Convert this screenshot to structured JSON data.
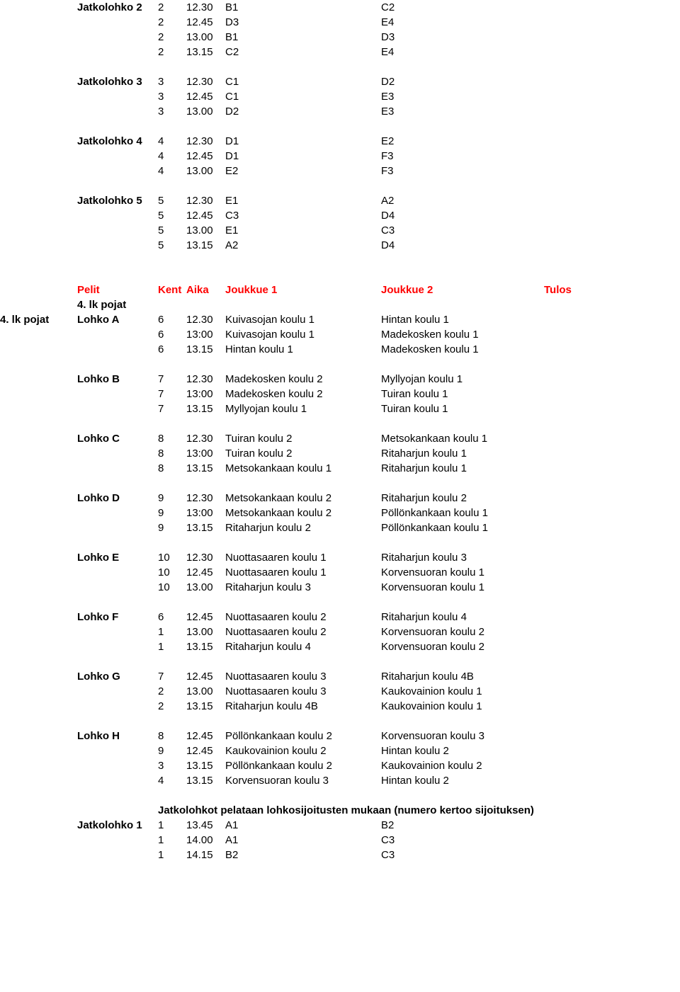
{
  "top_blocks": [
    {
      "label": "Jatkolohko 2",
      "rows": [
        {
          "k": "2",
          "a": "12.30",
          "j1": "B1",
          "j2": "C2"
        },
        {
          "k": "2",
          "a": "12.45",
          "j1": "D3",
          "j2": "E4"
        },
        {
          "k": "2",
          "a": "13.00",
          "j1": "B1",
          "j2": "D3"
        },
        {
          "k": "2",
          "a": "13.15",
          "j1": "C2",
          "j2": "E4"
        }
      ]
    },
    {
      "label": "Jatkolohko 3",
      "rows": [
        {
          "k": "3",
          "a": "12.30",
          "j1": "C1",
          "j2": "D2"
        },
        {
          "k": "3",
          "a": "12.45",
          "j1": "C1",
          "j2": "E3"
        },
        {
          "k": "3",
          "a": "13.00",
          "j1": "D2",
          "j2": "E3"
        }
      ]
    },
    {
      "label": "Jatkolohko 4",
      "rows": [
        {
          "k": "4",
          "a": "12.30",
          "j1": "D1",
          "j2": "E2"
        },
        {
          "k": "4",
          "a": "12.45",
          "j1": "D1",
          "j2": "F3"
        },
        {
          "k": "4",
          "a": "13.00",
          "j1": "E2",
          "j2": "F3"
        }
      ]
    },
    {
      "label": "Jatkolohko 5",
      "rows": [
        {
          "k": "5",
          "a": "12.30",
          "j1": "E1",
          "j2": "A2"
        },
        {
          "k": "5",
          "a": "12.45",
          "j1": "C3",
          "j2": "D4"
        },
        {
          "k": "5",
          "a": "13.00",
          "j1": "E1",
          "j2": "C3"
        },
        {
          "k": "5",
          "a": "13.15",
          "j1": "A2",
          "j2": "D4"
        }
      ]
    }
  ],
  "header": {
    "pelit": "Pelit",
    "kentta": "Kenttä",
    "aika": "Aika",
    "j1": "Joukkue 1",
    "j2": "Joukkue 2",
    "tulos": "Tulos"
  },
  "section_label_outer": "4. lk pojat",
  "section_label_inner": "4. lk pojat",
  "lohkot": [
    {
      "label": "Lohko A",
      "rows": [
        {
          "k": "6",
          "a": "12.30",
          "j1": "Kuivasojan koulu 1",
          "j2": "Hintan koulu 1"
        },
        {
          "k": "6",
          "a": "13:00",
          "j1": "Kuivasojan koulu 1",
          "j2": "Madekosken koulu 1"
        },
        {
          "k": "6",
          "a": "13.15",
          "j1": "Hintan koulu 1",
          "j2": "Madekosken koulu 1"
        }
      ]
    },
    {
      "label": "Lohko B",
      "rows": [
        {
          "k": "7",
          "a": "12.30",
          "j1": "Madekosken koulu 2",
          "j2": "Myllyojan koulu 1"
        },
        {
          "k": "7",
          "a": "13:00",
          "j1": "Madekosken koulu 2",
          "j2": "Tuiran koulu 1"
        },
        {
          "k": "7",
          "a": "13.15",
          "j1": "Myllyojan koulu 1",
          "j2": "Tuiran koulu 1"
        }
      ]
    },
    {
      "label": "Lohko C",
      "rows": [
        {
          "k": "8",
          "a": "12.30",
          "j1": "Tuiran koulu 2",
          "j2": "Metsokankaan koulu 1"
        },
        {
          "k": "8",
          "a": "13:00",
          "j1": "Tuiran koulu 2",
          "j2": "Ritaharjun koulu 1"
        },
        {
          "k": "8",
          "a": "13.15",
          "j1": "Metsokankaan koulu 1",
          "j2": "Ritaharjun koulu 1"
        }
      ]
    },
    {
      "label": "Lohko D",
      "rows": [
        {
          "k": "9",
          "a": "12.30",
          "j1": "Metsokankaan koulu 2",
          "j2": "Ritaharjun koulu 2"
        },
        {
          "k": "9",
          "a": "13:00",
          "j1": "Metsokankaan koulu 2",
          "j2": "Pöllönkankaan koulu 1"
        },
        {
          "k": "9",
          "a": "13.15",
          "j1": "Ritaharjun koulu 2",
          "j2": "Pöllönkankaan koulu 1"
        }
      ]
    },
    {
      "label": "Lohko E",
      "rows": [
        {
          "k": "10",
          "a": "12.30",
          "j1": "Nuottasaaren koulu 1",
          "j2": "Ritaharjun koulu 3"
        },
        {
          "k": "10",
          "a": "12.45",
          "j1": "Nuottasaaren koulu 1",
          "j2": "Korvensuoran koulu 1"
        },
        {
          "k": "10",
          "a": "13.00",
          "j1": "Ritaharjun koulu 3",
          "j2": "Korvensuoran koulu 1"
        }
      ]
    },
    {
      "label": "Lohko F",
      "rows": [
        {
          "k": "6",
          "a": "12.45",
          "j1": "Nuottasaaren koulu 2",
          "j2": "Ritaharjun koulu 4"
        },
        {
          "k": "1",
          "a": "13.00",
          "j1": "Nuottasaaren koulu 2",
          "j2": "Korvensuoran koulu 2"
        },
        {
          "k": "1",
          "a": "13.15",
          "j1": "Ritaharjun koulu 4",
          "j2": "Korvensuoran koulu 2"
        }
      ]
    },
    {
      "label": "Lohko G",
      "rows": [
        {
          "k": "7",
          "a": "12.45",
          "j1": "Nuottasaaren koulu 3",
          "j2": "Ritaharjun koulu 4B"
        },
        {
          "k": "2",
          "a": "13.00",
          "j1": "Nuottasaaren koulu 3",
          "j2": "Kaukovainion koulu 1"
        },
        {
          "k": "2",
          "a": "13.15",
          "j1": "Ritaharjun koulu 4B",
          "j2": "Kaukovainion koulu 1"
        }
      ]
    },
    {
      "label": "Lohko H",
      "rows": [
        {
          "k": "8",
          "a": "12.45",
          "j1": "Pöllönkankaan koulu 2",
          "j2": "Korvensuoran koulu 3"
        },
        {
          "k": "9",
          "a": "12.45",
          "j1": "Kaukovainion koulu 2",
          "j2": "Hintan koulu 2"
        },
        {
          "k": "3",
          "a": "13.15",
          "j1": "Pöllönkankaan koulu 2",
          "j2": "Kaukovainion koulu 2"
        },
        {
          "k": "4",
          "a": "13.15",
          "j1": "Korvensuoran koulu 3",
          "j2": "Hintan koulu 2"
        }
      ]
    }
  ],
  "note": "Jatkolohkot pelataan lohkosijoitusten mukaan (numero kertoo sijoituksen)",
  "jatkolohko1": {
    "label": "Jatkolohko 1",
    "rows": [
      {
        "k": "1",
        "a": "13.45",
        "j1": "A1",
        "j2": "B2"
      },
      {
        "k": "1",
        "a": "14.00",
        "j1": "A1",
        "j2": "C3"
      },
      {
        "k": "1",
        "a": "14.15",
        "j1": "B2",
        "j2": "C3"
      }
    ]
  }
}
